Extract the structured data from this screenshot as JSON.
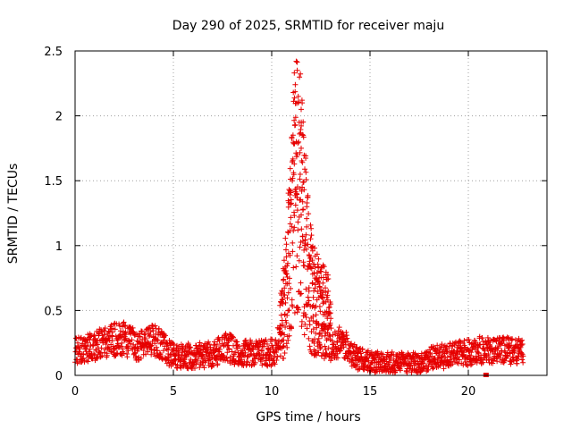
{
  "chart_data": {
    "type": "scatter",
    "title": "Day 290 of 2025, SRMTID for receiver maju",
    "xlabel": "GPS time / hours",
    "ylabel": "SRMTID / TECUs",
    "xlim": [
      0,
      24
    ],
    "ylim": [
      0,
      2.5
    ],
    "xticks": [
      0,
      5,
      10,
      15,
      20
    ],
    "yticks": [
      0,
      0.5,
      1,
      1.5,
      2,
      2.5
    ],
    "xtick_labels": [
      "0",
      "5",
      "10",
      "15",
      "20"
    ],
    "ytick_labels": [
      "0",
      "0.5",
      "1",
      "1.5",
      "2",
      "2.5"
    ],
    "grid": true,
    "marker": "+",
    "color": "#e60000",
    "series": [
      {
        "name": "maju",
        "profile": [
          [
            0.0,
            0.18
          ],
          [
            1.0,
            0.22
          ],
          [
            1.7,
            0.27
          ],
          [
            2.5,
            0.28
          ],
          [
            3.3,
            0.22
          ],
          [
            3.9,
            0.28
          ],
          [
            4.3,
            0.24
          ],
          [
            5.0,
            0.15
          ],
          [
            6.0,
            0.15
          ],
          [
            7.0,
            0.16
          ],
          [
            7.6,
            0.22
          ],
          [
            8.5,
            0.17
          ],
          [
            9.5,
            0.17
          ],
          [
            10.2,
            0.18
          ],
          [
            10.45,
            0.35
          ],
          [
            10.8,
            0.75
          ],
          [
            11.1,
            1.2
          ],
          [
            11.35,
            1.6
          ],
          [
            11.6,
            1.15
          ],
          [
            11.9,
            0.75
          ],
          [
            12.2,
            0.55
          ],
          [
            12.6,
            0.5
          ],
          [
            12.9,
            0.45
          ],
          [
            13.1,
            0.2
          ],
          [
            13.5,
            0.28
          ],
          [
            14.0,
            0.18
          ],
          [
            14.5,
            0.12
          ],
          [
            15.0,
            0.1
          ],
          [
            15.5,
            0.1
          ],
          [
            16.0,
            0.1
          ],
          [
            17.0,
            0.09
          ],
          [
            17.8,
            0.1
          ],
          [
            18.2,
            0.14
          ],
          [
            19.0,
            0.15
          ],
          [
            20.0,
            0.18
          ],
          [
            20.7,
            0.2
          ],
          [
            21.3,
            0.18
          ],
          [
            22.0,
            0.19
          ],
          [
            22.8,
            0.2
          ]
        ],
        "peaks": [
          [
            11.15,
            2.33
          ],
          [
            11.3,
            2.35
          ],
          [
            11.2,
            2.24
          ],
          [
            11.1,
            2.18
          ],
          [
            11.35,
            2.15
          ],
          [
            11.55,
            2.1
          ],
          [
            11.5,
            2.05
          ],
          [
            11.4,
            1.95
          ],
          [
            11.2,
            1.93
          ],
          [
            11.6,
            1.85
          ],
          [
            11.25,
            1.8
          ],
          [
            11.5,
            1.75
          ],
          [
            11.3,
            1.7
          ],
          [
            11.15,
            1.63
          ],
          [
            11.45,
            1.55
          ],
          [
            11.05,
            1.5
          ],
          [
            11.55,
            1.45
          ],
          [
            11.3,
            1.37
          ],
          [
            10.95,
            1.32
          ],
          [
            11.6,
            1.28
          ],
          [
            11.4,
            1.22
          ],
          [
            10.85,
            1.1
          ],
          [
            11.7,
            1.0
          ],
          [
            12.2,
            0.75
          ],
          [
            12.35,
            0.72
          ],
          [
            12.45,
            0.68
          ],
          [
            12.6,
            0.65
          ],
          [
            12.4,
            0.6
          ],
          [
            10.5,
            0.62
          ],
          [
            13.0,
            0.55
          ]
        ],
        "outliers": [
          [
            20.9,
            0.0
          ]
        ]
      }
    ]
  }
}
